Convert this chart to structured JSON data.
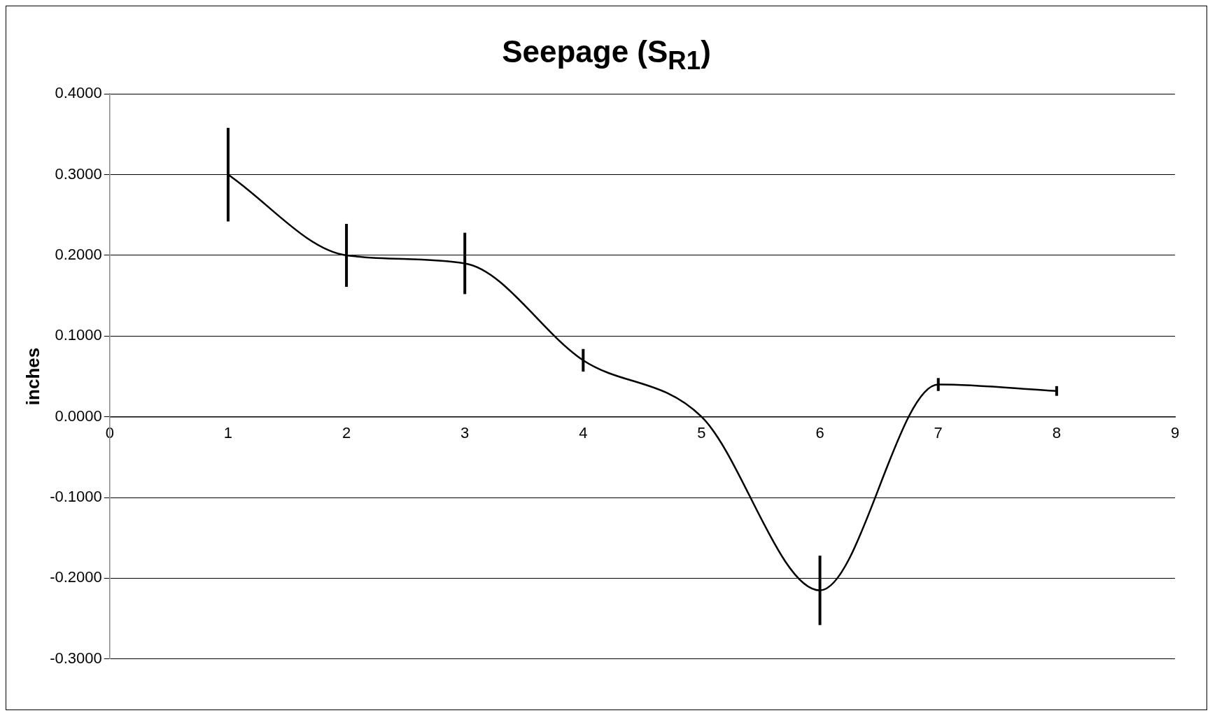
{
  "chart_data": {
    "type": "line",
    "title": "Seepage (S$_{R1}$)",
    "ylabel": "inches",
    "x": [
      1,
      2,
      3,
      4,
      5,
      6,
      7,
      8
    ],
    "series": [
      {
        "color": "#000000",
        "values": [
          0.3,
          0.2,
          0.19,
          0.07,
          0.0,
          -0.215,
          0.04,
          0.032
        ],
        "errors": [
          0.058,
          0.039,
          0.038,
          0.014,
          null,
          0.043,
          0.008,
          0.006
        ]
      }
    ],
    "xlim": [
      0,
      9
    ],
    "xticks": [
      0,
      1,
      2,
      3,
      4,
      5,
      6,
      7,
      8,
      9
    ],
    "ylim": [
      -0.3,
      0.4
    ],
    "yticks": [
      {
        "value": -0.3,
        "label": "-0.3000"
      },
      {
        "value": -0.2,
        "label": "-0.2000"
      },
      {
        "value": -0.1,
        "label": "-0.1000"
      },
      {
        "value": 0,
        "label": "0.0000"
      },
      {
        "value": 0.1,
        "label": "0.1000"
      },
      {
        "value": 0.2,
        "label": "0.2000"
      },
      {
        "value": 0.3,
        "label": "0.3000"
      },
      {
        "value": 0.4,
        "label": "0.4000"
      }
    ],
    "grid": "y",
    "legend": false,
    "marker": "none",
    "line_style": "solid"
  }
}
